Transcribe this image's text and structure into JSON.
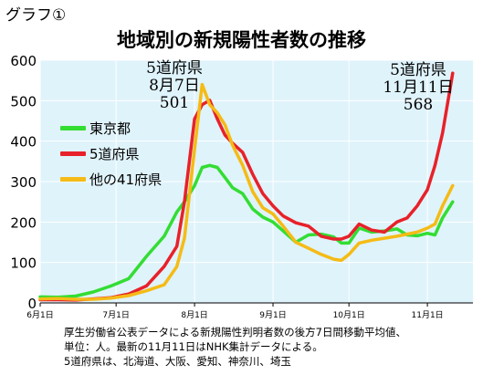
{
  "header": {
    "graph_label": "グラフ①"
  },
  "chart_data": {
    "type": "line",
    "title": "地域別の新規陽性者数の推移",
    "xlabel": "",
    "ylabel": "",
    "ylim": [
      0,
      600
    ],
    "yticks": [
      0,
      100,
      200,
      300,
      400,
      500,
      600
    ],
    "x_range": [
      "2021-06-01",
      "2021-11-11"
    ],
    "x_ticks": [
      {
        "date": "2021-06-01",
        "label": "6月1日"
      },
      {
        "date": "2021-07-01",
        "label": "7月1日"
      },
      {
        "date": "2021-08-01",
        "label": "8月1日"
      },
      {
        "date": "2021-09-01",
        "label": "9月1日"
      },
      {
        "date": "2021-10-01",
        "label": "10月1日"
      },
      {
        "date": "2021-11-01",
        "label": "11月1日"
      }
    ],
    "plot_background": "#dff3fb",
    "legend_position": "left",
    "series": [
      {
        "name": "東京都",
        "color": "#33dd33",
        "points": [
          [
            "2021-06-01",
            15
          ],
          [
            "2021-06-08",
            14
          ],
          [
            "2021-06-15",
            17
          ],
          [
            "2021-06-22",
            27
          ],
          [
            "2021-06-29",
            42
          ],
          [
            "2021-07-06",
            60
          ],
          [
            "2021-07-13",
            115
          ],
          [
            "2021-07-20",
            165
          ],
          [
            "2021-07-25",
            225
          ],
          [
            "2021-07-28",
            250
          ],
          [
            "2021-08-01",
            290
          ],
          [
            "2021-08-04",
            335
          ],
          [
            "2021-08-07",
            340
          ],
          [
            "2021-08-10",
            335
          ],
          [
            "2021-08-13",
            310
          ],
          [
            "2021-08-16",
            285
          ],
          [
            "2021-08-20",
            270
          ],
          [
            "2021-08-24",
            232
          ],
          [
            "2021-08-28",
            212
          ],
          [
            "2021-09-01",
            200
          ],
          [
            "2021-09-05",
            178
          ],
          [
            "2021-09-10",
            150
          ],
          [
            "2021-09-15",
            168
          ],
          [
            "2021-09-20",
            170
          ],
          [
            "2021-09-25",
            163
          ],
          [
            "2021-09-28",
            148
          ],
          [
            "2021-10-01",
            148
          ],
          [
            "2021-10-05",
            185
          ],
          [
            "2021-10-10",
            175
          ],
          [
            "2021-10-15",
            178
          ],
          [
            "2021-10-20",
            183
          ],
          [
            "2021-10-24",
            168
          ],
          [
            "2021-10-28",
            166
          ],
          [
            "2021-11-01",
            172
          ],
          [
            "2021-11-04",
            168
          ],
          [
            "2021-11-07",
            210
          ],
          [
            "2021-11-11",
            250
          ]
        ]
      },
      {
        "name": "5道府県",
        "color": "#e8212a",
        "points": [
          [
            "2021-06-01",
            8
          ],
          [
            "2021-06-08",
            8
          ],
          [
            "2021-06-15",
            7
          ],
          [
            "2021-06-22",
            10
          ],
          [
            "2021-06-29",
            13
          ],
          [
            "2021-07-06",
            22
          ],
          [
            "2021-07-13",
            42
          ],
          [
            "2021-07-20",
            90
          ],
          [
            "2021-07-25",
            140
          ],
          [
            "2021-07-28",
            250
          ],
          [
            "2021-08-01",
            455
          ],
          [
            "2021-08-04",
            490
          ],
          [
            "2021-08-07",
            501
          ],
          [
            "2021-08-10",
            455
          ],
          [
            "2021-08-13",
            415
          ],
          [
            "2021-08-16",
            395
          ],
          [
            "2021-08-20",
            372
          ],
          [
            "2021-08-24",
            318
          ],
          [
            "2021-08-28",
            270
          ],
          [
            "2021-09-01",
            240
          ],
          [
            "2021-09-05",
            215
          ],
          [
            "2021-09-10",
            198
          ],
          [
            "2021-09-15",
            190
          ],
          [
            "2021-09-20",
            165
          ],
          [
            "2021-09-25",
            158
          ],
          [
            "2021-09-28",
            158
          ],
          [
            "2021-10-01",
            165
          ],
          [
            "2021-10-05",
            195
          ],
          [
            "2021-10-10",
            180
          ],
          [
            "2021-10-15",
            175
          ],
          [
            "2021-10-20",
            200
          ],
          [
            "2021-10-24",
            210
          ],
          [
            "2021-10-28",
            240
          ],
          [
            "2021-11-01",
            280
          ],
          [
            "2021-11-04",
            340
          ],
          [
            "2021-11-07",
            420
          ],
          [
            "2021-11-11",
            568
          ]
        ]
      },
      {
        "name": "他の41府県",
        "color": "#f5bb16",
        "points": [
          [
            "2021-06-01",
            10
          ],
          [
            "2021-06-08",
            11
          ],
          [
            "2021-06-15",
            9
          ],
          [
            "2021-06-22",
            9
          ],
          [
            "2021-06-29",
            12
          ],
          [
            "2021-07-06",
            18
          ],
          [
            "2021-07-13",
            30
          ],
          [
            "2021-07-20",
            45
          ],
          [
            "2021-07-25",
            90
          ],
          [
            "2021-07-28",
            160
          ],
          [
            "2021-08-01",
            380
          ],
          [
            "2021-08-04",
            540
          ],
          [
            "2021-08-07",
            490
          ],
          [
            "2021-08-10",
            470
          ],
          [
            "2021-08-13",
            440
          ],
          [
            "2021-08-16",
            390
          ],
          [
            "2021-08-20",
            340
          ],
          [
            "2021-08-24",
            275
          ],
          [
            "2021-08-28",
            235
          ],
          [
            "2021-09-01",
            220
          ],
          [
            "2021-09-05",
            190
          ],
          [
            "2021-09-10",
            150
          ],
          [
            "2021-09-15",
            135
          ],
          [
            "2021-09-20",
            120
          ],
          [
            "2021-09-25",
            108
          ],
          [
            "2021-09-28",
            105
          ],
          [
            "2021-10-01",
            120
          ],
          [
            "2021-10-05",
            148
          ],
          [
            "2021-10-10",
            155
          ],
          [
            "2021-10-15",
            160
          ],
          [
            "2021-10-20",
            165
          ],
          [
            "2021-10-24",
            170
          ],
          [
            "2021-10-28",
            175
          ],
          [
            "2021-11-01",
            185
          ],
          [
            "2021-11-04",
            195
          ],
          [
            "2021-11-07",
            240
          ],
          [
            "2021-11-11",
            290
          ]
        ]
      }
    ],
    "annotations": [
      {
        "lines": [
          "5道府県",
          "8月7日",
          "501"
        ]
      },
      {
        "lines": [
          "5道府県",
          "11月11日",
          "568"
        ]
      }
    ]
  },
  "notes": [
    "厚生労働省公表データによる新規陽性判明者数の後方7日間移動平均値、",
    "単位：人。最新の11月11日はNHK集計データによる。",
    "5道府県は、北海道、大阪、愛知、神奈川、埼玉"
  ]
}
